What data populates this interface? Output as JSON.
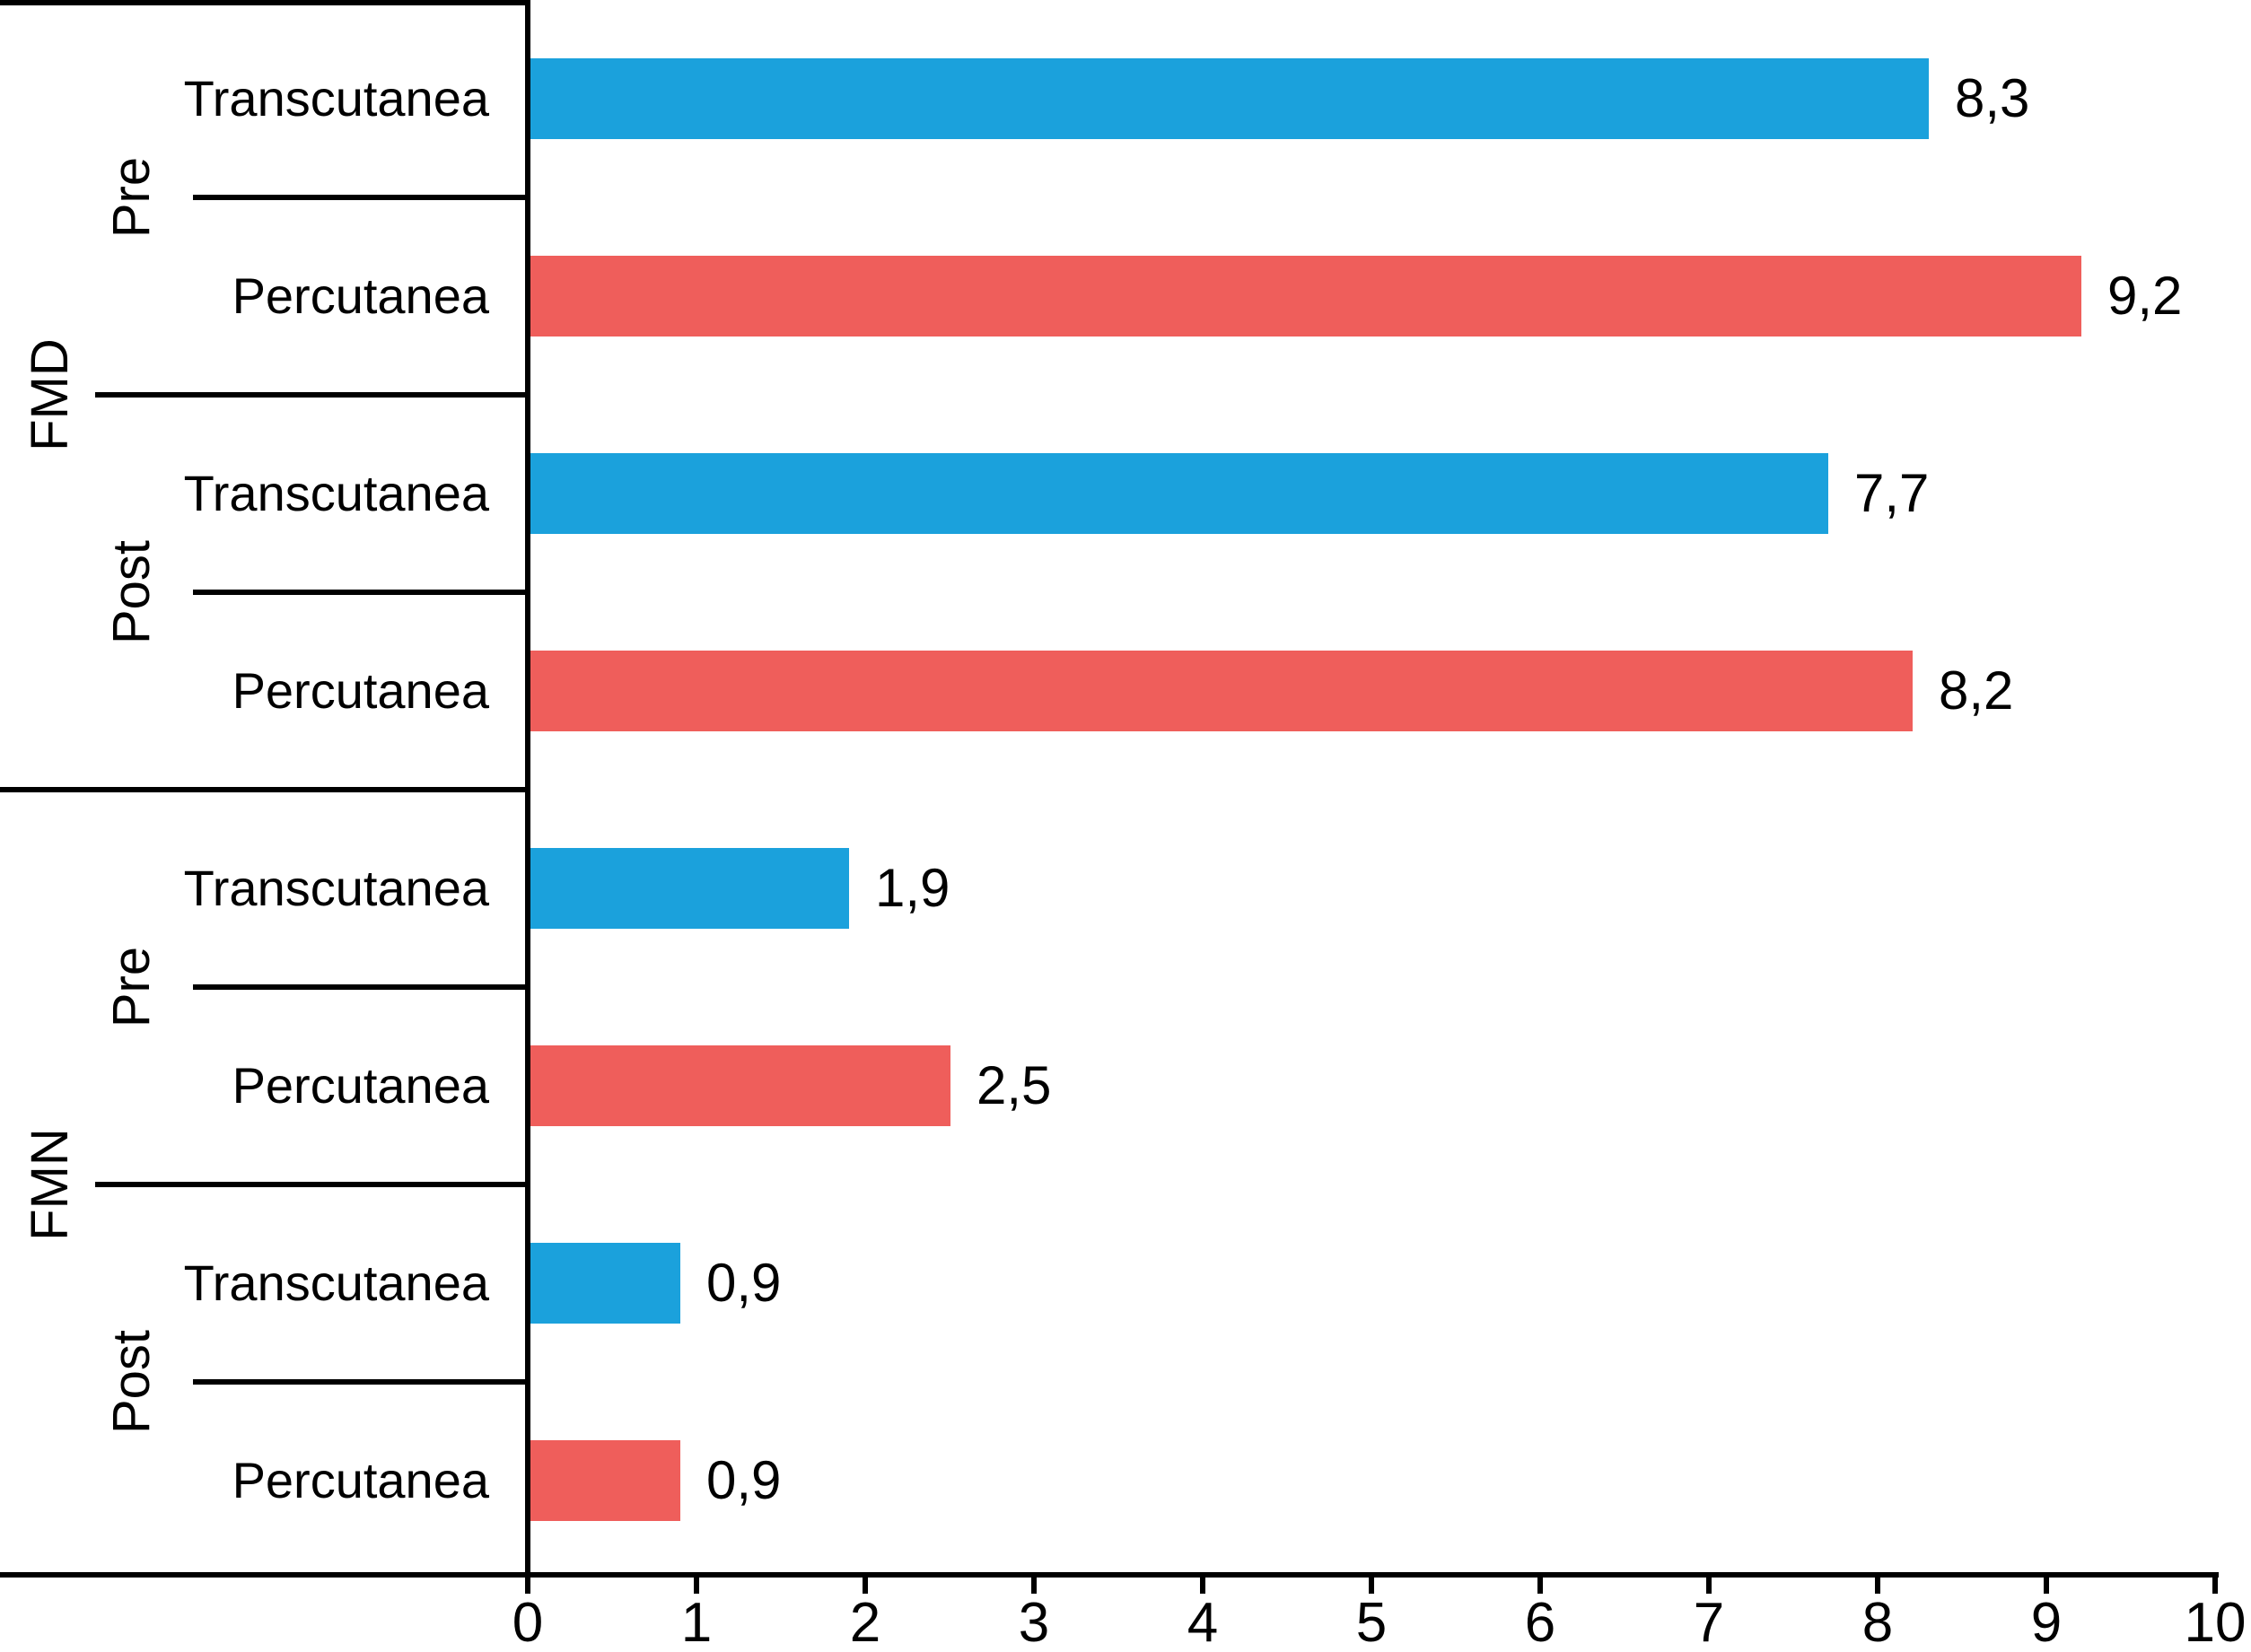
{
  "chart_data": {
    "type": "bar",
    "orientation": "horizontal",
    "title": "",
    "xlabel": "",
    "ylabel": "",
    "grid": false,
    "legend": "none",
    "x_axis": {
      "min": 0,
      "max": 10,
      "ticks": [
        "0",
        "1",
        "2",
        "3",
        "4",
        "5",
        "6",
        "7",
        "8",
        "9",
        "10"
      ]
    },
    "colors": {
      "Transcutanea": "#1BA1DC",
      "Percutanea": "#EF5E5B"
    },
    "groups": [
      {
        "label": "FMD",
        "subgroups": [
          {
            "label": "Pre"
          },
          {
            "label": "Post"
          }
        ]
      },
      {
        "label": "FMN",
        "subgroups": [
          {
            "label": "Pre"
          },
          {
            "label": "Post"
          }
        ]
      }
    ],
    "rows": [
      {
        "group": "FMD",
        "phase": "Pre",
        "series": "Transcutanea",
        "label": "Transcutanea",
        "value": 8.3,
        "value_label": "8,3"
      },
      {
        "group": "FMD",
        "phase": "Pre",
        "series": "Percutanea",
        "label": "Percutanea",
        "value": 9.2,
        "value_label": "9,2"
      },
      {
        "group": "FMD",
        "phase": "Post",
        "series": "Transcutanea",
        "label": "Transcutanea",
        "value": 7.7,
        "value_label": "7,7"
      },
      {
        "group": "FMD",
        "phase": "Post",
        "series": "Percutanea",
        "label": "Percutanea",
        "value": 8.2,
        "value_label": "8,2"
      },
      {
        "group": "FMN",
        "phase": "Pre",
        "series": "Transcutanea",
        "label": "Transcutanea",
        "value": 1.9,
        "value_label": "1,9"
      },
      {
        "group": "FMN",
        "phase": "Pre",
        "series": "Percutanea",
        "label": "Percutanea",
        "value": 2.5,
        "value_label": "2,5"
      },
      {
        "group": "FMN",
        "phase": "Post",
        "series": "Transcutanea",
        "label": "Transcutanea",
        "value": 0.9,
        "value_label": "0,9"
      },
      {
        "group": "FMN",
        "phase": "Post",
        "series": "Percutanea",
        "label": "Percutanea",
        "value": 0.9,
        "value_label": "0,9"
      }
    ]
  }
}
